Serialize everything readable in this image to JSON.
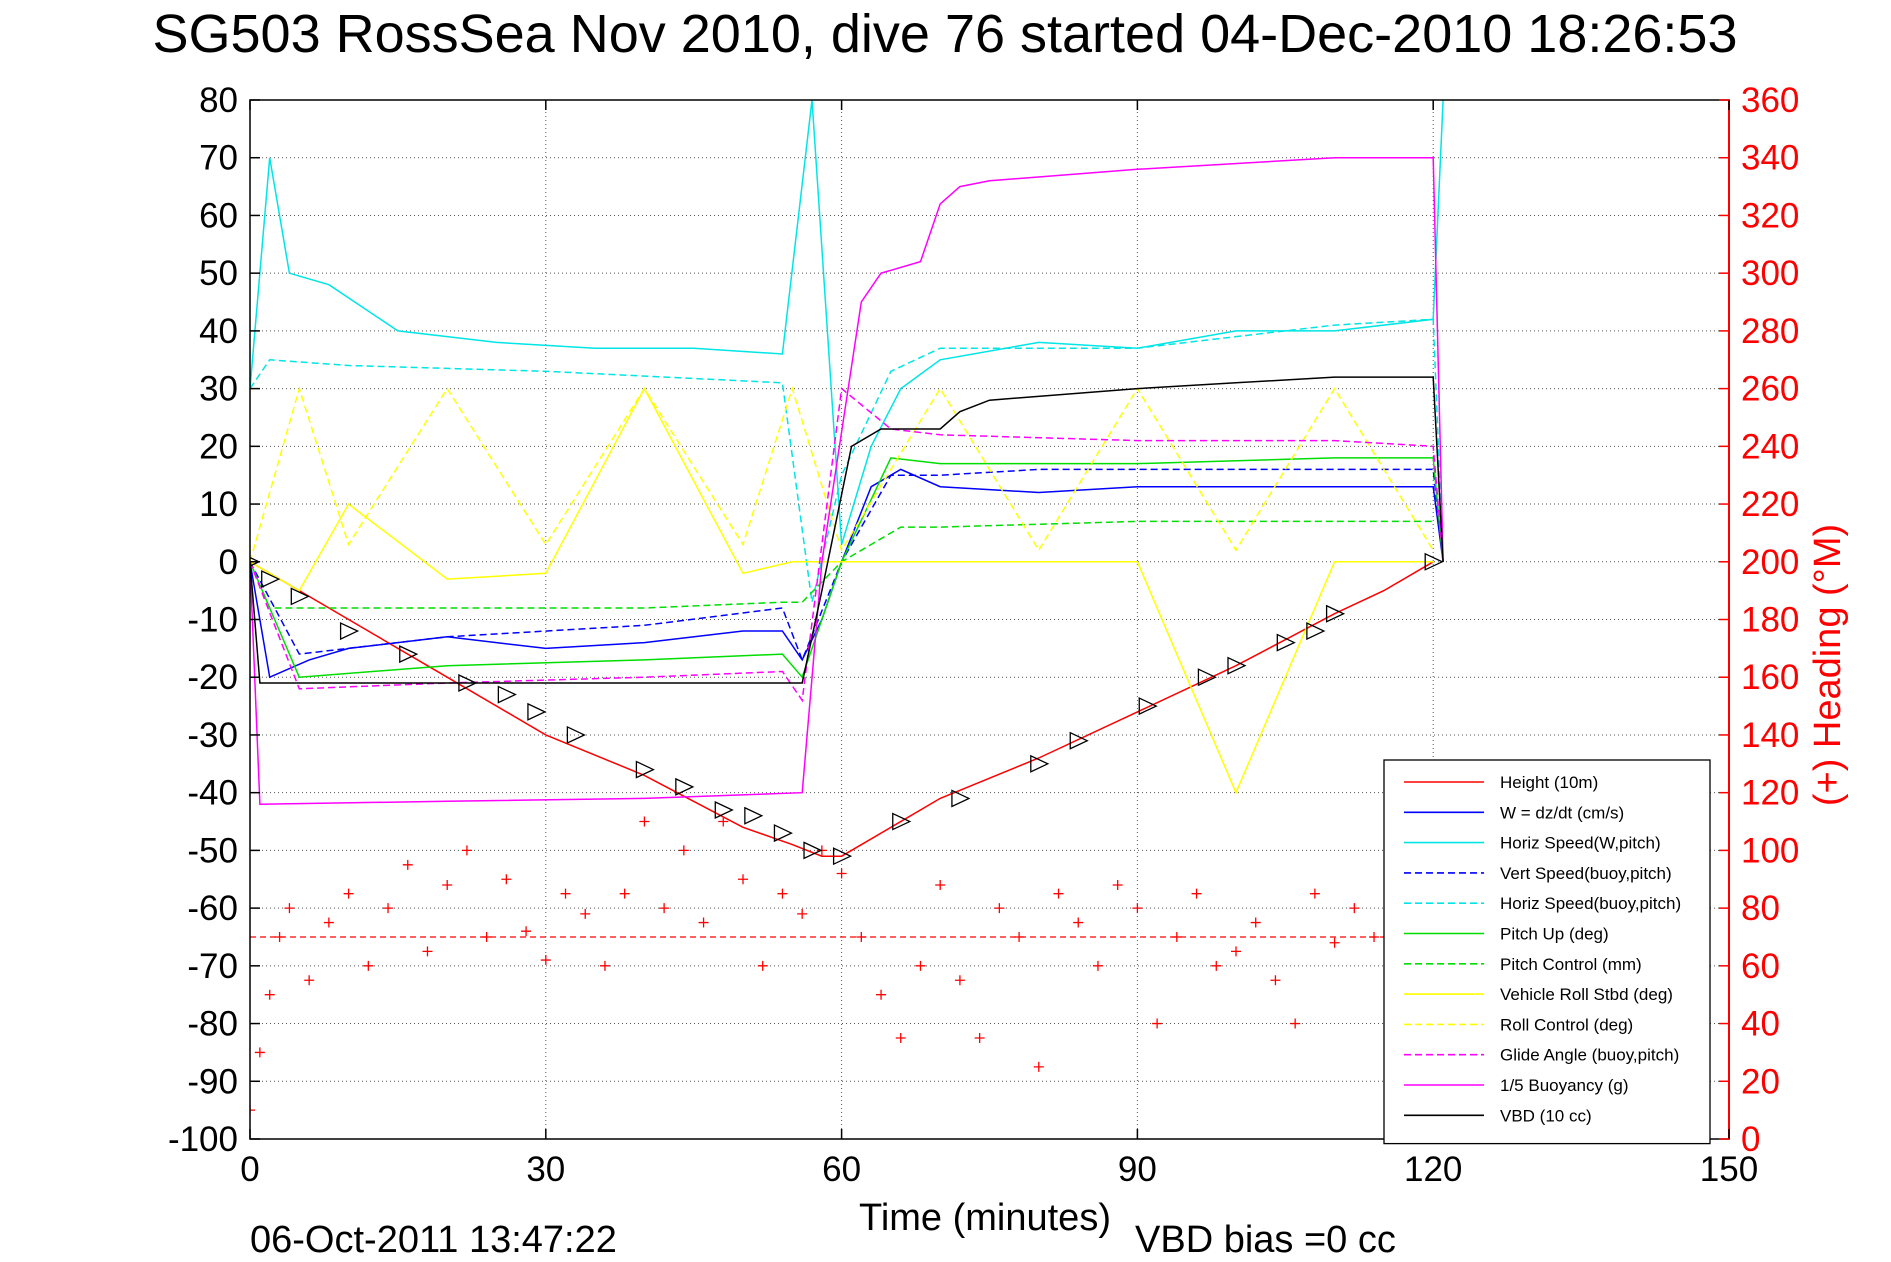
{
  "chart_data": {
    "type": "line",
    "title": "SG503 RossSea Nov 2010, dive 76 started 04-Dec-2010 18:26:53",
    "xlabel": "Time (minutes)",
    "ylabel_right": "(+) Heading (°M)",
    "footer_date": "06-Oct-2011 13:47:22",
    "footer_bias": "VBD bias =0 cc",
    "xlim": [
      0,
      150
    ],
    "ylim": [
      -100,
      80
    ],
    "ylim_right": [
      0,
      360
    ],
    "xticks": [
      "0",
      "30",
      "60",
      "90",
      "120",
      "150"
    ],
    "yticks": [
      "80",
      "70",
      "60",
      "50",
      "40",
      "30",
      "20",
      "10",
      "0",
      "-10",
      "-20",
      "-30",
      "-40",
      "-50",
      "-60",
      "-70",
      "-80",
      "-90",
      "-100"
    ],
    "yticks_right": [
      "360",
      "340",
      "320",
      "300",
      "280",
      "260",
      "240",
      "220",
      "200",
      "180",
      "160",
      "140",
      "120",
      "100",
      "80",
      "60",
      "40",
      "20",
      "0"
    ],
    "grid": true,
    "legend_position": "lower-right",
    "series": [
      {
        "name": "Height (10m)",
        "color": "#ff0000",
        "style": "solid",
        "x": [
          0,
          10,
          20,
          30,
          40,
          50,
          55,
          58,
          60,
          65,
          70,
          80,
          90,
          100,
          110,
          115,
          120
        ],
        "y": [
          0,
          -10,
          -20,
          -30,
          -37,
          -46,
          -49,
          -51,
          -51,
          -46,
          -41,
          -34,
          -26,
          -18,
          -9,
          -5,
          0
        ]
      },
      {
        "name": "W = dz/dt (cm/s)",
        "color": "#0000ff",
        "style": "solid",
        "x": [
          0,
          2,
          6,
          10,
          20,
          30,
          40,
          50,
          54,
          56,
          58,
          60,
          63,
          66,
          70,
          80,
          90,
          100,
          110,
          120,
          121
        ],
        "y": [
          0,
          -20,
          -17,
          -15,
          -13,
          -15,
          -14,
          -12,
          -12,
          -17,
          -10,
          0,
          13,
          16,
          13,
          12,
          13,
          13,
          13,
          13,
          0
        ]
      },
      {
        "name": "Horiz Speed(W,pitch)",
        "color": "#00e5e5",
        "style": "solid",
        "x": [
          0,
          2,
          4,
          8,
          15,
          25,
          35,
          45,
          54,
          57,
          60,
          63,
          66,
          70,
          80,
          90,
          100,
          110,
          120,
          121
        ],
        "y": [
          30,
          70,
          50,
          48,
          40,
          38,
          37,
          37,
          36,
          80,
          3,
          20,
          30,
          35,
          38,
          37,
          40,
          40,
          42,
          80
        ]
      },
      {
        "name": "Vert Speed(buoy,pitch)",
        "color": "#0000ff",
        "style": "dashed",
        "x": [
          0,
          5,
          20,
          40,
          54,
          56,
          60,
          65,
          70,
          80,
          100,
          120,
          121
        ],
        "y": [
          0,
          -16,
          -13,
          -11,
          -8,
          -17,
          0,
          15,
          15,
          16,
          16,
          16,
          0
        ]
      },
      {
        "name": "Horiz Speed(buoy,pitch)",
        "color": "#00e5e5",
        "style": "dashed",
        "x": [
          0,
          2,
          10,
          30,
          54,
          57,
          60,
          65,
          70,
          90,
          110,
          120,
          121
        ],
        "y": [
          30,
          35,
          34,
          33,
          31,
          -7,
          15,
          33,
          37,
          37,
          41,
          42,
          0
        ]
      },
      {
        "name": "Pitch Up (deg)",
        "color": "#00dd00",
        "style": "solid",
        "x": [
          0,
          5,
          20,
          40,
          54,
          56,
          60,
          65,
          70,
          90,
          110,
          120,
          121
        ],
        "y": [
          0,
          -20,
          -18,
          -17,
          -16,
          -20,
          0,
          18,
          17,
          17,
          18,
          18,
          0
        ]
      },
      {
        "name": "Pitch Control (mm)",
        "color": "#00dd00",
        "style": "dashed",
        "x": [
          0,
          2,
          20,
          40,
          54,
          56,
          60,
          66,
          70,
          90,
          110,
          120
        ],
        "y": [
          0,
          -8,
          -8,
          -8,
          -7,
          -7,
          0,
          6,
          6,
          7,
          7,
          7
        ]
      },
      {
        "name": "Vehicle Roll Stbd (deg)",
        "color": "#ffff00",
        "style": "solid",
        "x": [
          0,
          5,
          10,
          20,
          30,
          40,
          50,
          55,
          60,
          70,
          80,
          90,
          100,
          110,
          120
        ],
        "y": [
          0,
          -5,
          10,
          -3,
          -2,
          30,
          -2,
          0,
          0,
          0,
          0,
          0,
          -40,
          0,
          0
        ]
      },
      {
        "name": "Roll Control (deg)",
        "color": "#ffff00",
        "style": "dashed",
        "x": [
          0,
          5,
          10,
          20,
          30,
          40,
          50,
          55,
          60,
          70,
          80,
          90,
          100,
          110,
          120
        ],
        "y": [
          0,
          30,
          3,
          30,
          3,
          30,
          3,
          30,
          2,
          30,
          2,
          30,
          2,
          30,
          2
        ]
      },
      {
        "name": "Glide Angle (buoy,pitch)",
        "color": "#ff00ff",
        "style": "dashed",
        "x": [
          0,
          5,
          20,
          40,
          54,
          56,
          60,
          65,
          70,
          90,
          110,
          120,
          121
        ],
        "y": [
          0,
          -22,
          -21,
          -20,
          -19,
          -24,
          30,
          23,
          22,
          21,
          21,
          20,
          0
        ]
      },
      {
        "name": "1/5 Buoyancy (g)",
        "color": "#ff00ff",
        "style": "solid",
        "x": [
          0,
          1,
          20,
          40,
          56,
          58,
          62,
          64,
          68,
          70,
          72,
          75,
          90,
          110,
          120,
          121
        ],
        "y": [
          0,
          -42,
          -41.5,
          -41,
          -40,
          0,
          45,
          50,
          52,
          62,
          65,
          66,
          68,
          70,
          70,
          0
        ]
      },
      {
        "name": "VBD (10 cc)",
        "color": "#000000",
        "style": "solid",
        "x": [
          0,
          1,
          54,
          56,
          58,
          61,
          64,
          70,
          72,
          75,
          90,
          100,
          110,
          120,
          121
        ],
        "y": [
          0,
          -21,
          -21,
          -21,
          -5,
          20,
          23,
          23,
          26,
          28,
          30,
          31,
          32,
          32,
          0
        ]
      }
    ],
    "heading_series": {
      "name": "Heading (°M)",
      "color": "#ff0000",
      "marker": "+",
      "axis": "right",
      "mean": 70,
      "x": [
        0,
        1,
        2,
        3,
        4,
        6,
        8,
        10,
        12,
        14,
        16,
        18,
        20,
        22,
        24,
        26,
        28,
        30,
        32,
        34,
        36,
        38,
        40,
        42,
        44,
        46,
        48,
        50,
        52,
        54,
        56,
        58,
        60,
        62,
        64,
        66,
        68,
        70,
        72,
        74,
        76,
        78,
        80,
        82,
        84,
        86,
        88,
        90,
        92,
        94,
        96,
        98,
        100,
        102,
        104,
        106,
        108,
        110,
        112,
        114,
        116
      ],
      "y": [
        10,
        30,
        50,
        70,
        80,
        55,
        75,
        85,
        60,
        80,
        95,
        65,
        88,
        100,
        70,
        90,
        72,
        62,
        85,
        78,
        60,
        85,
        110,
        80,
        100,
        75,
        110,
        90,
        60,
        85,
        78,
        100,
        92,
        70,
        50,
        35,
        60,
        88,
        55,
        35,
        80,
        70,
        25,
        85,
        75,
        60,
        88,
        80,
        40,
        70,
        85,
        60,
        65,
        75,
        55,
        40,
        85,
        68,
        80,
        70,
        55
      ]
    },
    "depth_markers": {
      "symbol": "triangle",
      "color": "#000000",
      "x": [
        0,
        2,
        5,
        10,
        16,
        22,
        26,
        29,
        33,
        40,
        44,
        48,
        51,
        54,
        57,
        60,
        66,
        72,
        80,
        84,
        91,
        97,
        100,
        105,
        108,
        110,
        120
      ],
      "y": [
        0,
        -3,
        -6,
        -12,
        -16,
        -21,
        -23,
        -26,
        -30,
        -36,
        -39,
        -43,
        -44,
        -47,
        -50,
        -51,
        -45,
        -41,
        -35,
        -31,
        -25,
        -20,
        -18,
        -14,
        -12,
        -9,
        0
      ]
    }
  }
}
